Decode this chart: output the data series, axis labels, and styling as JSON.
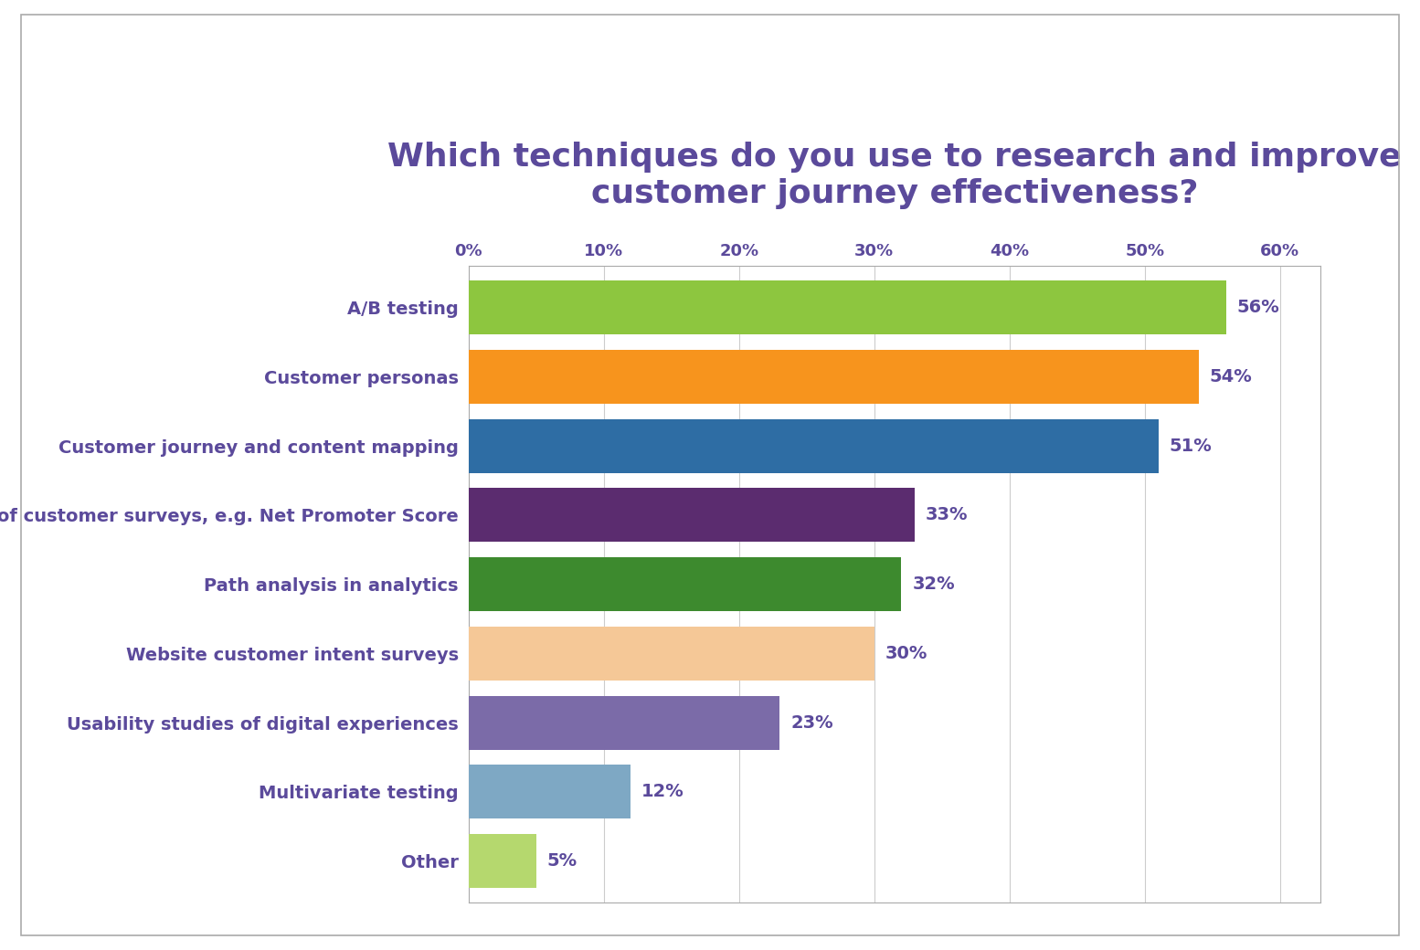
{
  "title": "Which techniques do you use to research and improve\ncustomer journey effectiveness?",
  "title_color": "#5b4a9b",
  "title_fontsize": 26,
  "background_color": "#ffffff",
  "categories": [
    "A/B testing",
    "Customer personas",
    "Customer journey and content mapping",
    "Voice of customer surveys, e.g. Net Promoter Score",
    "Path analysis in analytics",
    "Website customer intent surveys",
    "Usability studies of digital experiences",
    "Multivariate testing",
    "Other"
  ],
  "values": [
    56,
    54,
    51,
    33,
    32,
    30,
    23,
    12,
    5
  ],
  "bar_colors": [
    "#8dc63f",
    "#f7941d",
    "#2e6da4",
    "#5b2c6f",
    "#3d8a2e",
    "#f5c897",
    "#7b6ba8",
    "#7ea8c4",
    "#b5d86e"
  ],
  "label_color": "#5b4a9b",
  "label_fontsize": 14,
  "tick_color": "#5b4a9b",
  "tick_fontsize": 13,
  "bar_label_fontsize": 14,
  "bar_label_color": "#5b4a9b",
  "xlim": [
    0,
    63
  ],
  "xticks": [
    0,
    10,
    20,
    30,
    40,
    50,
    60
  ],
  "xtick_labels": [
    "0%",
    "10%",
    "20%",
    "30%",
    "40%",
    "50%",
    "60%"
  ],
  "grid_color": "#cccccc",
  "border_color": "#aaaaaa",
  "bar_height": 0.78
}
